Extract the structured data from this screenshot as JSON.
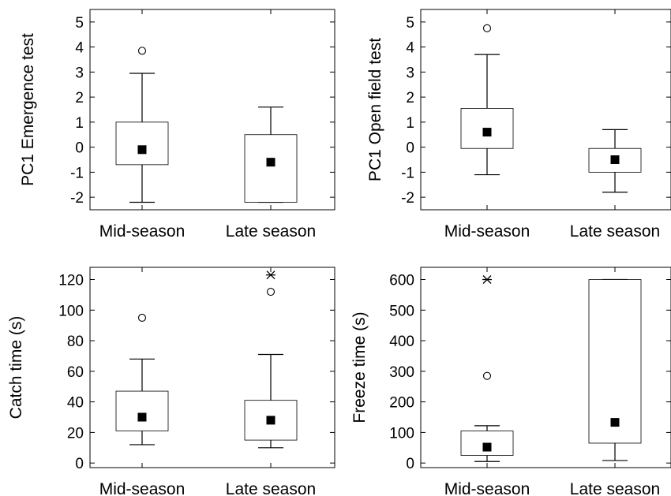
{
  "chart_data": [
    {
      "type": "box",
      "ylabel": "PC1 Emergence test",
      "categories": [
        "Mid-season",
        "Late season"
      ],
      "ylim": [
        -2.5,
        5.5
      ],
      "yticks": [
        -2,
        -1,
        0,
        1,
        2,
        3,
        4,
        5
      ],
      "boxes": [
        {
          "category": "Mid-season",
          "whisker_low": -2.2,
          "q1": -0.7,
          "q3": 1.0,
          "whisker_high": 2.95,
          "mean": -0.1,
          "outliers": [
            3.85
          ],
          "extremes": []
        },
        {
          "category": "Late season",
          "whisker_low": -2.2,
          "q1": -2.2,
          "q3": 0.5,
          "whisker_high": 1.6,
          "mean": -0.6,
          "outliers": [],
          "extremes": []
        }
      ]
    },
    {
      "type": "box",
      "ylabel": "PC1 Open field test",
      "categories": [
        "Mid-season",
        "Late season"
      ],
      "ylim": [
        -2.5,
        5.5
      ],
      "yticks": [
        -2,
        -1,
        0,
        1,
        2,
        3,
        4,
        5
      ],
      "boxes": [
        {
          "category": "Mid-season",
          "whisker_low": -1.1,
          "q1": -0.05,
          "q3": 1.55,
          "whisker_high": 3.7,
          "mean": 0.6,
          "outliers": [
            4.75
          ],
          "extremes": []
        },
        {
          "category": "Late season",
          "whisker_low": -1.8,
          "q1": -1.0,
          "q3": -0.05,
          "whisker_high": 0.7,
          "mean": -0.5,
          "outliers": [],
          "extremes": []
        }
      ]
    },
    {
      "type": "box",
      "ylabel": "Catch time (s)",
      "categories": [
        "Mid-season",
        "Late season"
      ],
      "ylim": [
        -3,
        128
      ],
      "yticks": [
        0,
        20,
        40,
        60,
        80,
        100,
        120
      ],
      "boxes": [
        {
          "category": "Mid-season",
          "whisker_low": 12,
          "q1": 21,
          "q3": 47,
          "whisker_high": 68,
          "mean": 30,
          "outliers": [
            95
          ],
          "extremes": []
        },
        {
          "category": "Late season",
          "whisker_low": 10,
          "q1": 15,
          "q3": 41,
          "whisker_high": 71,
          "mean": 28,
          "outliers": [
            112
          ],
          "extremes": [
            123
          ]
        }
      ]
    },
    {
      "type": "box",
      "ylabel": "Freeze time (s)",
      "categories": [
        "Mid-season",
        "Late season"
      ],
      "ylim": [
        -15,
        640
      ],
      "yticks": [
        0,
        100,
        200,
        300,
        400,
        500,
        600
      ],
      "boxes": [
        {
          "category": "Mid-season",
          "whisker_low": 5,
          "q1": 25,
          "q3": 105,
          "whisker_high": 122,
          "mean": 52,
          "outliers": [
            285
          ],
          "extremes": [
            600
          ]
        },
        {
          "category": "Late season",
          "whisker_low": 8,
          "q1": 65,
          "q3": 600,
          "whisker_high": 600,
          "mean": 133,
          "outliers": [],
          "extremes": []
        }
      ]
    }
  ]
}
